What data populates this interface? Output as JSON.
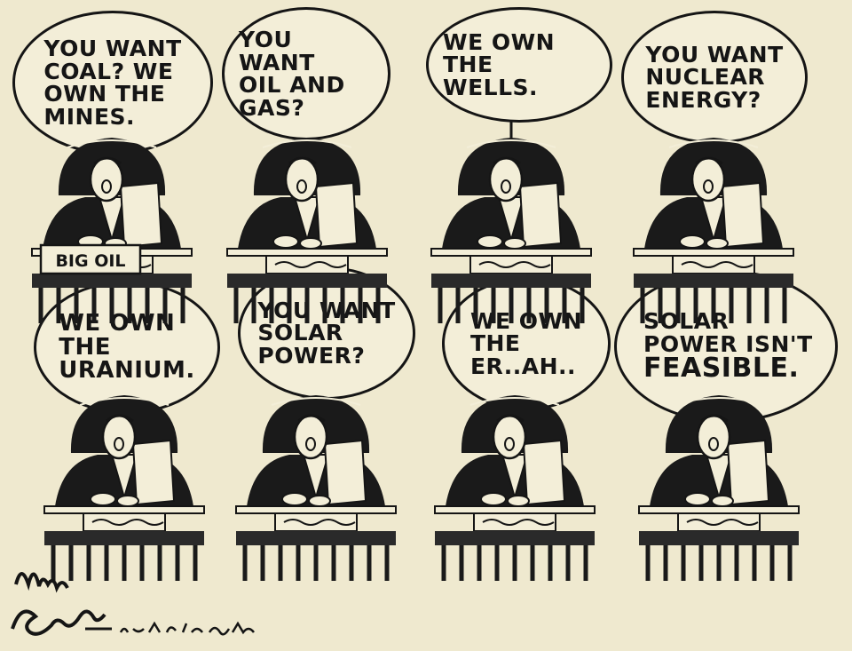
{
  "comic": {
    "panels": [
      {
        "id": "p1",
        "bubble_text": "YOU WANT\nCOAL? WE\nOWN THE\nMINES.",
        "desk_sign": "BIG OIL"
      },
      {
        "id": "p2",
        "bubble_text": "YOU WANT\nOIL AND\nGAS?"
      },
      {
        "id": "p3",
        "bubble_text": "WE OWN\nTHE WELLS."
      },
      {
        "id": "p4",
        "bubble_text": "YOU WANT\nNUCLEAR\nENERGY?"
      },
      {
        "id": "p5",
        "bubble_text": "WE OWN\nTHE\nURANIUM."
      },
      {
        "id": "p6",
        "bubble_text": "YOU WANT\nSOLAR\nPOWER?"
      },
      {
        "id": "p7",
        "bubble_text": "WE OWN\nTHE\nER..AH.."
      },
      {
        "id": "p8",
        "bubble_text": "SOLAR\nPOWER ISN'T",
        "bubble_emphasis": "FEASIBLE."
      }
    ],
    "signature": "Mike Peters",
    "credit": "DAYTON DAILY NEWS"
  },
  "colors": {
    "paper": "#efe9cf",
    "ink": "#151515",
    "bubble_fill": "#f3eed8"
  }
}
